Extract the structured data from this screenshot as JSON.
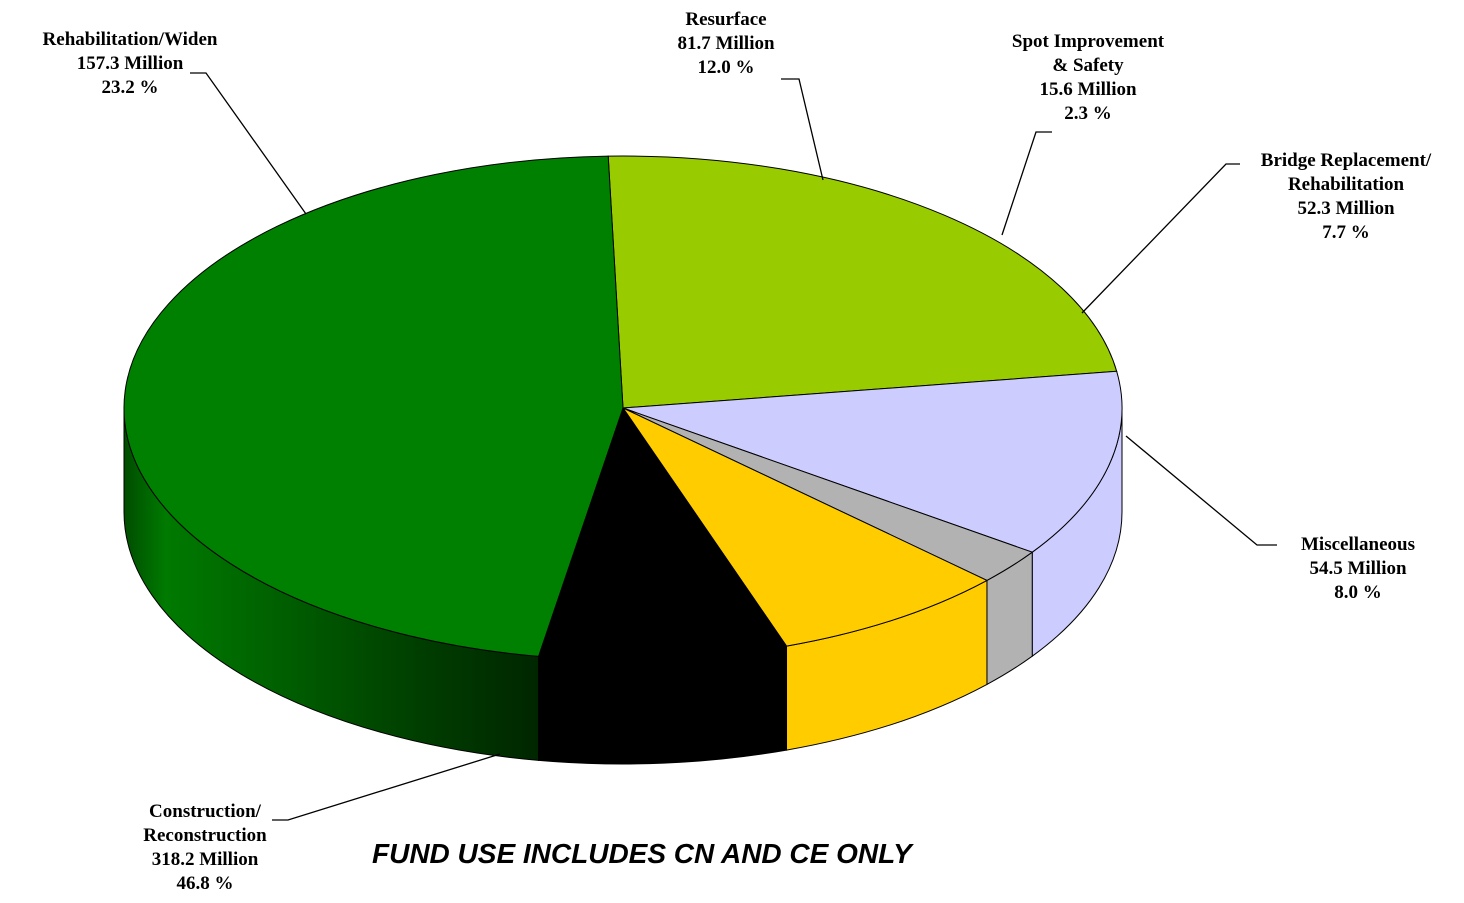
{
  "chart_data": {
    "type": "pie",
    "unit": "Million",
    "slices": [
      {
        "name_lines": [
          "Rehabilitation/Widen"
        ],
        "value_text": "157.3  Million",
        "percent_text": "23.2 %",
        "value": 157.3,
        "percent": 23.2,
        "color": "#99cc00"
      },
      {
        "name_lines": [
          "Resurface"
        ],
        "value_text": "81.7 Million",
        "percent_text": "12.0 %",
        "value": 81.7,
        "percent": 12.0,
        "color": "#ccccff"
      },
      {
        "name_lines": [
          "Spot Improvement",
          "& Safety"
        ],
        "value_text": "15.6 Million",
        "percent_text": "2.3 %",
        "value": 15.6,
        "percent": 2.3,
        "color": "#b2b2b2"
      },
      {
        "name_lines": [
          "Bridge Replacement/",
          "Rehabilitation"
        ],
        "value_text": "52.3  Million",
        "percent_text": "7.7 %",
        "value": 52.3,
        "percent": 7.7,
        "color": "#ffcc00"
      },
      {
        "name_lines": [
          "Miscellaneous"
        ],
        "value_text": "54.5  Million",
        "percent_text": "8.0 %",
        "value": 54.5,
        "percent": 8.0,
        "color": "#000000"
      },
      {
        "name_lines": [
          "Construction/",
          "Reconstruction"
        ],
        "value_text": "318.2  Million",
        "percent_text": "46.8 %",
        "value": 318.2,
        "percent": 46.8,
        "color": "#008000"
      }
    ],
    "footnote": "FUND USE INCLUDES CN AND CE ONLY"
  }
}
